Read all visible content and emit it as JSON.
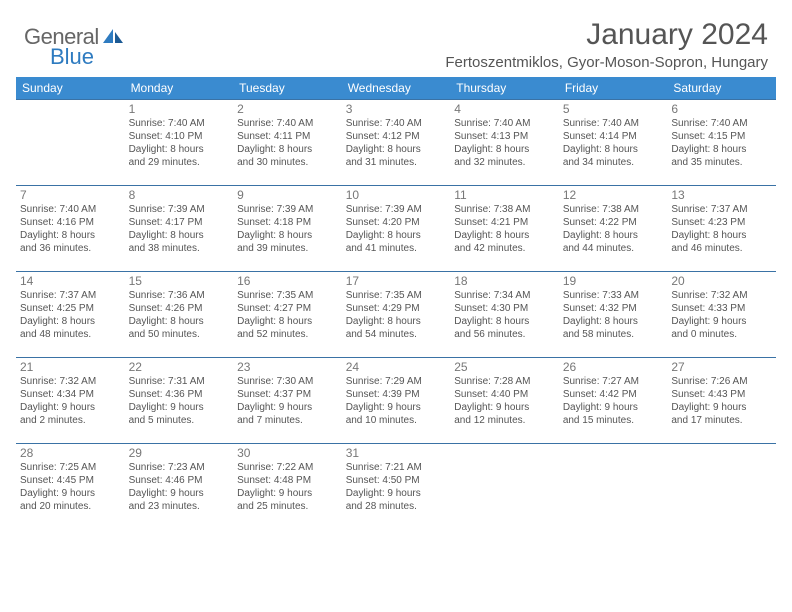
{
  "logo": {
    "general": "General",
    "blue": "Blue"
  },
  "title": "January 2024",
  "location": "Fertoszentmiklos, Gyor-Moson-Sopron, Hungary",
  "colors": {
    "header_bg": "#3a8bd0",
    "header_text": "#ffffff",
    "rule": "#3a72a5",
    "daynum": "#777777",
    "body_text": "#555555",
    "logo_general": "#666666",
    "logo_blue": "#2e7bc0",
    "page_bg": "#ffffff"
  },
  "weekdays": [
    "Sunday",
    "Monday",
    "Tuesday",
    "Wednesday",
    "Thursday",
    "Friday",
    "Saturday"
  ],
  "weeks": [
    [
      null,
      {
        "n": "1",
        "sr": "Sunrise: 7:40 AM",
        "ss": "Sunset: 4:10 PM",
        "d1": "Daylight: 8 hours",
        "d2": "and 29 minutes."
      },
      {
        "n": "2",
        "sr": "Sunrise: 7:40 AM",
        "ss": "Sunset: 4:11 PM",
        "d1": "Daylight: 8 hours",
        "d2": "and 30 minutes."
      },
      {
        "n": "3",
        "sr": "Sunrise: 7:40 AM",
        "ss": "Sunset: 4:12 PM",
        "d1": "Daylight: 8 hours",
        "d2": "and 31 minutes."
      },
      {
        "n": "4",
        "sr": "Sunrise: 7:40 AM",
        "ss": "Sunset: 4:13 PM",
        "d1": "Daylight: 8 hours",
        "d2": "and 32 minutes."
      },
      {
        "n": "5",
        "sr": "Sunrise: 7:40 AM",
        "ss": "Sunset: 4:14 PM",
        "d1": "Daylight: 8 hours",
        "d2": "and 34 minutes."
      },
      {
        "n": "6",
        "sr": "Sunrise: 7:40 AM",
        "ss": "Sunset: 4:15 PM",
        "d1": "Daylight: 8 hours",
        "d2": "and 35 minutes."
      }
    ],
    [
      {
        "n": "7",
        "sr": "Sunrise: 7:40 AM",
        "ss": "Sunset: 4:16 PM",
        "d1": "Daylight: 8 hours",
        "d2": "and 36 minutes."
      },
      {
        "n": "8",
        "sr": "Sunrise: 7:39 AM",
        "ss": "Sunset: 4:17 PM",
        "d1": "Daylight: 8 hours",
        "d2": "and 38 minutes."
      },
      {
        "n": "9",
        "sr": "Sunrise: 7:39 AM",
        "ss": "Sunset: 4:18 PM",
        "d1": "Daylight: 8 hours",
        "d2": "and 39 minutes."
      },
      {
        "n": "10",
        "sr": "Sunrise: 7:39 AM",
        "ss": "Sunset: 4:20 PM",
        "d1": "Daylight: 8 hours",
        "d2": "and 41 minutes."
      },
      {
        "n": "11",
        "sr": "Sunrise: 7:38 AM",
        "ss": "Sunset: 4:21 PM",
        "d1": "Daylight: 8 hours",
        "d2": "and 42 minutes."
      },
      {
        "n": "12",
        "sr": "Sunrise: 7:38 AM",
        "ss": "Sunset: 4:22 PM",
        "d1": "Daylight: 8 hours",
        "d2": "and 44 minutes."
      },
      {
        "n": "13",
        "sr": "Sunrise: 7:37 AM",
        "ss": "Sunset: 4:23 PM",
        "d1": "Daylight: 8 hours",
        "d2": "and 46 minutes."
      }
    ],
    [
      {
        "n": "14",
        "sr": "Sunrise: 7:37 AM",
        "ss": "Sunset: 4:25 PM",
        "d1": "Daylight: 8 hours",
        "d2": "and 48 minutes."
      },
      {
        "n": "15",
        "sr": "Sunrise: 7:36 AM",
        "ss": "Sunset: 4:26 PM",
        "d1": "Daylight: 8 hours",
        "d2": "and 50 minutes."
      },
      {
        "n": "16",
        "sr": "Sunrise: 7:35 AM",
        "ss": "Sunset: 4:27 PM",
        "d1": "Daylight: 8 hours",
        "d2": "and 52 minutes."
      },
      {
        "n": "17",
        "sr": "Sunrise: 7:35 AM",
        "ss": "Sunset: 4:29 PM",
        "d1": "Daylight: 8 hours",
        "d2": "and 54 minutes."
      },
      {
        "n": "18",
        "sr": "Sunrise: 7:34 AM",
        "ss": "Sunset: 4:30 PM",
        "d1": "Daylight: 8 hours",
        "d2": "and 56 minutes."
      },
      {
        "n": "19",
        "sr": "Sunrise: 7:33 AM",
        "ss": "Sunset: 4:32 PM",
        "d1": "Daylight: 8 hours",
        "d2": "and 58 minutes."
      },
      {
        "n": "20",
        "sr": "Sunrise: 7:32 AM",
        "ss": "Sunset: 4:33 PM",
        "d1": "Daylight: 9 hours",
        "d2": "and 0 minutes."
      }
    ],
    [
      {
        "n": "21",
        "sr": "Sunrise: 7:32 AM",
        "ss": "Sunset: 4:34 PM",
        "d1": "Daylight: 9 hours",
        "d2": "and 2 minutes."
      },
      {
        "n": "22",
        "sr": "Sunrise: 7:31 AM",
        "ss": "Sunset: 4:36 PM",
        "d1": "Daylight: 9 hours",
        "d2": "and 5 minutes."
      },
      {
        "n": "23",
        "sr": "Sunrise: 7:30 AM",
        "ss": "Sunset: 4:37 PM",
        "d1": "Daylight: 9 hours",
        "d2": "and 7 minutes."
      },
      {
        "n": "24",
        "sr": "Sunrise: 7:29 AM",
        "ss": "Sunset: 4:39 PM",
        "d1": "Daylight: 9 hours",
        "d2": "and 10 minutes."
      },
      {
        "n": "25",
        "sr": "Sunrise: 7:28 AM",
        "ss": "Sunset: 4:40 PM",
        "d1": "Daylight: 9 hours",
        "d2": "and 12 minutes."
      },
      {
        "n": "26",
        "sr": "Sunrise: 7:27 AM",
        "ss": "Sunset: 4:42 PM",
        "d1": "Daylight: 9 hours",
        "d2": "and 15 minutes."
      },
      {
        "n": "27",
        "sr": "Sunrise: 7:26 AM",
        "ss": "Sunset: 4:43 PM",
        "d1": "Daylight: 9 hours",
        "d2": "and 17 minutes."
      }
    ],
    [
      {
        "n": "28",
        "sr": "Sunrise: 7:25 AM",
        "ss": "Sunset: 4:45 PM",
        "d1": "Daylight: 9 hours",
        "d2": "and 20 minutes."
      },
      {
        "n": "29",
        "sr": "Sunrise: 7:23 AM",
        "ss": "Sunset: 4:46 PM",
        "d1": "Daylight: 9 hours",
        "d2": "and 23 minutes."
      },
      {
        "n": "30",
        "sr": "Sunrise: 7:22 AM",
        "ss": "Sunset: 4:48 PM",
        "d1": "Daylight: 9 hours",
        "d2": "and 25 minutes."
      },
      {
        "n": "31",
        "sr": "Sunrise: 7:21 AM",
        "ss": "Sunset: 4:50 PM",
        "d1": "Daylight: 9 hours",
        "d2": "and 28 minutes."
      },
      null,
      null,
      null
    ]
  ]
}
